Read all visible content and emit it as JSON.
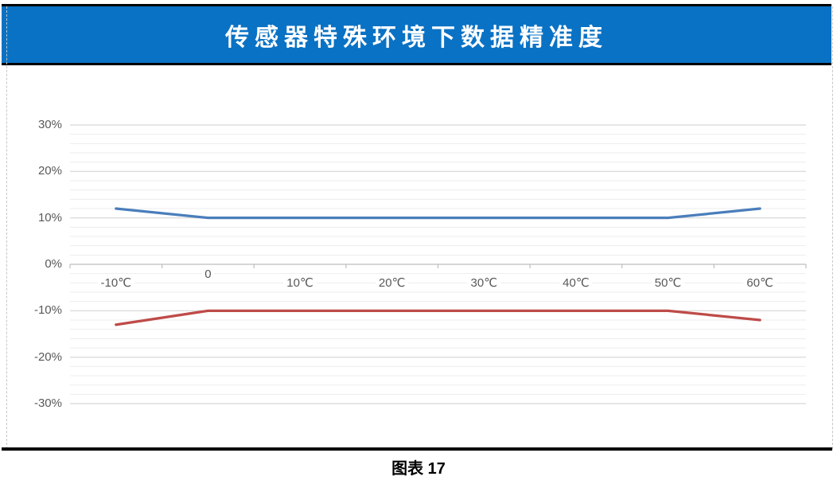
{
  "header": {
    "title": "传感器特殊环境下数据精准度",
    "bar_color": "#0A72C4",
    "text_color": "#FFFFFF"
  },
  "caption": {
    "text": "图表 17"
  },
  "chart_data": {
    "type": "line",
    "title": "传感器特殊环境下数据精准度",
    "categories": [
      "-10℃",
      "0",
      "10℃",
      "20℃",
      "30℃",
      "40℃",
      "50℃",
      "60℃"
    ],
    "series": [
      {
        "name": "series-1",
        "color": "#4A7EBB",
        "values": [
          12,
          10,
          10,
          10,
          10,
          10,
          10,
          12
        ]
      },
      {
        "name": "series-2",
        "color": "#BE4B48",
        "values": [
          -13,
          -10,
          -10,
          -10,
          -10,
          -10,
          -10,
          -12
        ]
      }
    ],
    "y_ticks": [
      {
        "label": "30%",
        "value": 30
      },
      {
        "label": "20%",
        "value": 20
      },
      {
        "label": "10%",
        "value": 10
      },
      {
        "label": "0%",
        "value": 0
      },
      {
        "label": "-10%",
        "value": -10
      },
      {
        "label": "-20%",
        "value": -20
      },
      {
        "label": "-30%",
        "value": -30
      }
    ],
    "minor_grid_step": 2,
    "ylim": [
      -30,
      30
    ],
    "grid": true,
    "legend": "none",
    "xlabel": "",
    "ylabel": "",
    "axis_color": "#BDBDBD",
    "major_grid_color": "#D6D6D6",
    "minor_grid_color": "#EDEDED"
  }
}
